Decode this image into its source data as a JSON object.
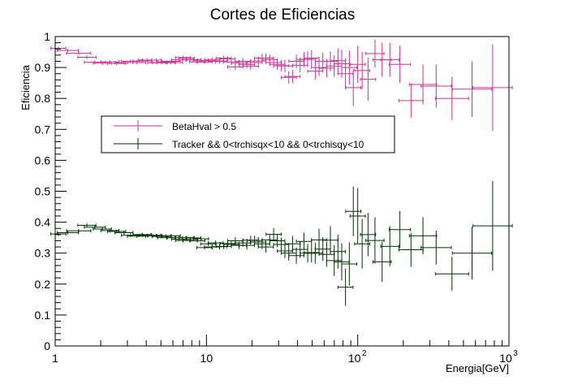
{
  "chart_data": {
    "type": "scatter",
    "title": "Cortes de Eficiencias",
    "xlabel": "Energia[GeV]",
    "ylabel": "Eficiencia",
    "xscale": "log",
    "xlim": [
      1,
      1000
    ],
    "ylim": [
      0,
      1
    ],
    "x_ticks": [
      {
        "v": 1,
        "label": "1"
      },
      {
        "v": 10,
        "label": "10"
      },
      {
        "v": 100,
        "label": "10",
        "exp": "2"
      },
      {
        "v": 1000,
        "label": "10",
        "exp": "3"
      }
    ],
    "y_ticks": [
      "0",
      "0.1",
      "0.2",
      "0.3",
      "0.4",
      "0.5",
      "0.6",
      "0.7",
      "0.8",
      "0.9",
      "1"
    ],
    "grid": false,
    "legend_position": "upper-left",
    "series": [
      {
        "name": "BetaHval > 0.5",
        "color": "#cc3399",
        "points": [
          [
            1.05,
            0.962,
            0.05,
            0.006
          ],
          [
            1.21,
            0.955,
            0.07,
            0.006
          ],
          [
            1.43,
            0.946,
            0.08,
            0.006
          ],
          [
            1.62,
            0.933,
            0.06,
            0.006
          ],
          [
            1.83,
            0.917,
            0.07,
            0.006
          ],
          [
            2.05,
            0.914,
            0.06,
            0.006
          ],
          [
            2.3,
            0.918,
            0.06,
            0.006
          ],
          [
            2.55,
            0.913,
            0.06,
            0.006
          ],
          [
            2.85,
            0.916,
            0.06,
            0.006
          ],
          [
            3.15,
            0.92,
            0.06,
            0.006
          ],
          [
            3.45,
            0.916,
            0.06,
            0.006
          ],
          [
            3.75,
            0.921,
            0.06,
            0.006
          ],
          [
            4.05,
            0.924,
            0.06,
            0.006
          ],
          [
            4.35,
            0.924,
            0.06,
            0.006
          ],
          [
            4.7,
            0.915,
            0.06,
            0.006
          ],
          [
            5.05,
            0.916,
            0.06,
            0.006
          ],
          [
            5.45,
            0.918,
            0.06,
            0.006
          ],
          [
            5.85,
            0.92,
            0.06,
            0.006
          ],
          [
            6.2,
            0.916,
            0.05,
            0.006
          ],
          [
            6.6,
            0.925,
            0.05,
            0.006
          ],
          [
            7.0,
            0.932,
            0.05,
            0.006
          ],
          [
            7.4,
            0.93,
            0.05,
            0.006
          ],
          [
            7.8,
            0.925,
            0.05,
            0.006
          ],
          [
            8.2,
            0.925,
            0.05,
            0.006
          ],
          [
            8.7,
            0.918,
            0.05,
            0.006
          ],
          [
            9.2,
            0.922,
            0.05,
            0.006
          ],
          [
            9.7,
            0.918,
            0.05,
            0.006
          ],
          [
            10.3,
            0.922,
            0.05,
            0.007
          ],
          [
            10.9,
            0.926,
            0.05,
            0.007
          ],
          [
            11.5,
            0.92,
            0.05,
            0.008
          ],
          [
            12.2,
            0.921,
            0.05,
            0.008
          ],
          [
            13.0,
            0.93,
            0.05,
            0.008
          ],
          [
            13.8,
            0.928,
            0.05,
            0.008
          ],
          [
            14.6,
            0.918,
            0.05,
            0.009
          ],
          [
            15.5,
            0.902,
            0.05,
            0.01
          ],
          [
            16.4,
            0.914,
            0.05,
            0.01
          ],
          [
            17.4,
            0.92,
            0.05,
            0.011
          ],
          [
            18.5,
            0.909,
            0.05,
            0.011
          ],
          [
            19.6,
            0.904,
            0.05,
            0.012
          ],
          [
            20.8,
            0.916,
            0.05,
            0.012
          ],
          [
            22.0,
            0.921,
            0.05,
            0.013
          ],
          [
            23.3,
            0.93,
            0.05,
            0.014
          ],
          [
            24.7,
            0.93,
            0.05,
            0.015
          ],
          [
            26.2,
            0.925,
            0.05,
            0.016
          ],
          [
            27.8,
            0.916,
            0.05,
            0.017
          ],
          [
            29.4,
            0.91,
            0.05,
            0.018
          ],
          [
            31.2,
            0.906,
            0.05,
            0.019
          ],
          [
            33.0,
            0.905,
            0.05,
            0.02
          ],
          [
            35.0,
            0.868,
            0.05,
            0.02
          ],
          [
            37.1,
            0.871,
            0.05,
            0.021
          ],
          [
            39.3,
            0.92,
            0.05,
            0.022
          ],
          [
            41.6,
            0.907,
            0.05,
            0.023
          ],
          [
            44.1,
            0.926,
            0.05,
            0.024
          ],
          [
            46.7,
            0.927,
            0.05,
            0.025
          ],
          [
            49.5,
            0.93,
            0.05,
            0.026
          ],
          [
            52.4,
            0.888,
            0.05,
            0.027
          ],
          [
            55.5,
            0.9,
            0.05,
            0.028
          ],
          [
            58.8,
            0.92,
            0.05,
            0.029
          ],
          [
            62.3,
            0.898,
            0.05,
            0.03
          ],
          [
            66.0,
            0.92,
            0.05,
            0.032
          ],
          [
            69.9,
            0.905,
            0.05,
            0.035
          ],
          [
            74.0,
            0.922,
            0.05,
            0.04
          ],
          [
            78.4,
            0.912,
            0.05,
            0.045
          ],
          [
            83.0,
            0.88,
            0.05,
            0.05
          ],
          [
            88.0,
            0.9,
            0.05,
            0.055
          ],
          [
            93.5,
            0.835,
            0.05,
            0.06
          ],
          [
            100,
            0.91,
            0.05,
            0.06
          ],
          [
            107,
            0.89,
            0.05,
            0.06
          ],
          [
            117,
            0.862,
            0.05,
            0.07
          ],
          [
            130,
            0.945,
            0.06,
            0.045
          ],
          [
            145,
            0.925,
            0.06,
            0.055
          ],
          [
            163,
            0.925,
            0.06,
            0.055
          ],
          [
            190,
            0.91,
            0.07,
            0.06
          ],
          [
            225,
            0.793,
            0.08,
            0.055
          ],
          [
            270,
            0.845,
            0.09,
            0.065
          ],
          [
            330,
            0.84,
            0.1,
            0.07
          ],
          [
            420,
            0.8,
            0.11,
            0.07
          ],
          [
            570,
            0.83,
            0.13,
            0.09
          ],
          [
            780,
            0.835,
            0.13,
            0.14
          ]
        ]
      },
      {
        "name": "Tracker && 0<trchisqx<10 && 0<trchisqy<10",
        "color": "#003300",
        "points": [
          [
            1.05,
            0.362,
            0.05,
            0.006
          ],
          [
            1.21,
            0.366,
            0.07,
            0.006
          ],
          [
            1.43,
            0.372,
            0.08,
            0.006
          ],
          [
            1.62,
            0.39,
            0.06,
            0.006
          ],
          [
            1.83,
            0.384,
            0.07,
            0.006
          ],
          [
            2.05,
            0.378,
            0.06,
            0.006
          ],
          [
            2.3,
            0.373,
            0.06,
            0.006
          ],
          [
            2.55,
            0.37,
            0.06,
            0.006
          ],
          [
            2.85,
            0.366,
            0.06,
            0.006
          ],
          [
            3.15,
            0.358,
            0.06,
            0.006
          ],
          [
            3.45,
            0.355,
            0.06,
            0.006
          ],
          [
            3.75,
            0.36,
            0.06,
            0.006
          ],
          [
            4.05,
            0.357,
            0.06,
            0.006
          ],
          [
            4.35,
            0.358,
            0.06,
            0.006
          ],
          [
            4.7,
            0.356,
            0.06,
            0.006
          ],
          [
            5.05,
            0.354,
            0.06,
            0.006
          ],
          [
            5.45,
            0.35,
            0.06,
            0.006
          ],
          [
            5.85,
            0.356,
            0.06,
            0.006
          ],
          [
            6.2,
            0.35,
            0.05,
            0.006
          ],
          [
            6.6,
            0.345,
            0.05,
            0.006
          ],
          [
            7.0,
            0.341,
            0.05,
            0.006
          ],
          [
            7.4,
            0.35,
            0.05,
            0.006
          ],
          [
            7.8,
            0.344,
            0.05,
            0.006
          ],
          [
            8.2,
            0.349,
            0.05,
            0.006
          ],
          [
            8.7,
            0.34,
            0.05,
            0.006
          ],
          [
            9.2,
            0.346,
            0.05,
            0.006
          ],
          [
            9.7,
            0.318,
            0.05,
            0.006
          ],
          [
            10.3,
            0.33,
            0.05,
            0.007
          ],
          [
            10.9,
            0.32,
            0.05,
            0.008
          ],
          [
            11.5,
            0.333,
            0.05,
            0.008
          ],
          [
            12.2,
            0.321,
            0.05,
            0.009
          ],
          [
            13.0,
            0.322,
            0.05,
            0.009
          ],
          [
            13.8,
            0.331,
            0.05,
            0.01
          ],
          [
            14.6,
            0.328,
            0.05,
            0.01
          ],
          [
            15.5,
            0.34,
            0.05,
            0.011
          ],
          [
            16.4,
            0.325,
            0.05,
            0.012
          ],
          [
            17.4,
            0.333,
            0.05,
            0.012
          ],
          [
            18.5,
            0.325,
            0.05,
            0.013
          ],
          [
            19.6,
            0.342,
            0.05,
            0.014
          ],
          [
            20.8,
            0.341,
            0.05,
            0.015
          ],
          [
            22.0,
            0.336,
            0.05,
            0.016
          ],
          [
            23.3,
            0.33,
            0.05,
            0.017
          ],
          [
            24.7,
            0.32,
            0.05,
            0.018
          ],
          [
            26.2,
            0.343,
            0.05,
            0.019
          ],
          [
            27.8,
            0.361,
            0.05,
            0.02
          ],
          [
            29.4,
            0.34,
            0.05,
            0.021
          ],
          [
            31.2,
            0.328,
            0.05,
            0.022
          ],
          [
            33.0,
            0.307,
            0.05,
            0.023
          ],
          [
            35.0,
            0.3,
            0.05,
            0.024
          ],
          [
            37.1,
            0.33,
            0.05,
            0.025
          ],
          [
            39.3,
            0.292,
            0.05,
            0.026
          ],
          [
            41.6,
            0.312,
            0.05,
            0.027
          ],
          [
            44.1,
            0.338,
            0.05,
            0.028
          ],
          [
            46.7,
            0.3,
            0.05,
            0.03
          ],
          [
            49.5,
            0.302,
            0.05,
            0.032
          ],
          [
            52.4,
            0.3,
            0.05,
            0.034
          ],
          [
            55.5,
            0.343,
            0.05,
            0.036
          ],
          [
            58.8,
            0.313,
            0.05,
            0.038
          ],
          [
            62.3,
            0.296,
            0.05,
            0.04
          ],
          [
            66.0,
            0.342,
            0.05,
            0.045
          ],
          [
            69.9,
            0.276,
            0.05,
            0.05
          ],
          [
            74.0,
            0.305,
            0.05,
            0.055
          ],
          [
            78.4,
            0.272,
            0.05,
            0.06
          ],
          [
            83.0,
            0.19,
            0.05,
            0.06
          ],
          [
            88.0,
            0.265,
            0.05,
            0.07
          ],
          [
            93.5,
            0.435,
            0.05,
            0.08
          ],
          [
            100,
            0.42,
            0.05,
            0.09
          ],
          [
            107,
            0.33,
            0.05,
            0.08
          ],
          [
            117,
            0.36,
            0.05,
            0.07
          ],
          [
            130,
            0.341,
            0.06,
            0.075
          ],
          [
            145,
            0.272,
            0.06,
            0.065
          ],
          [
            163,
            0.322,
            0.06,
            0.065
          ],
          [
            190,
            0.376,
            0.07,
            0.06
          ],
          [
            225,
            0.311,
            0.08,
            0.055
          ],
          [
            270,
            0.356,
            0.09,
            0.06
          ],
          [
            330,
            0.318,
            0.1,
            0.055
          ],
          [
            420,
            0.233,
            0.11,
            0.055
          ],
          [
            570,
            0.3,
            0.13,
            0.085
          ],
          [
            780,
            0.388,
            0.13,
            0.145
          ]
        ]
      }
    ]
  }
}
